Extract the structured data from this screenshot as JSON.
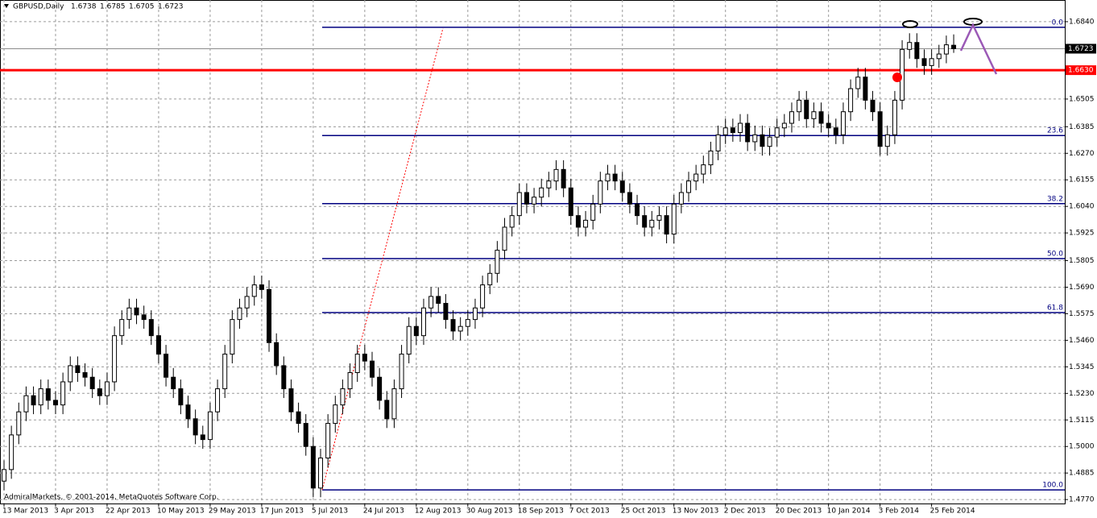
{
  "chart_data": {
    "type": "candlestick",
    "title": "GBPUSD,Daily",
    "footer": "AdmiralMarkets, © 2001-2014, MetaQuotes Software Corp.",
    "x": [
      "13 Mar 2013",
      null,
      null,
      null,
      null,
      null,
      null,
      "3 Apr 2013",
      null,
      null,
      null,
      null,
      null,
      null,
      "22 Apr 2013",
      null,
      null,
      null,
      null,
      null,
      null,
      "10 May 2013",
      null,
      null,
      null,
      null,
      null,
      null,
      "29 May 2013",
      null,
      null,
      null,
      null,
      null,
      null,
      "17 Jun 2013",
      null,
      null,
      null,
      null,
      null,
      null,
      "5 Jul 2013",
      null,
      null,
      null,
      null,
      null,
      null,
      "24 Jul 2013",
      null,
      null,
      null,
      null,
      null,
      null,
      "12 Aug 2013",
      null,
      null,
      null,
      null,
      null,
      null,
      "30 Aug 2013",
      null,
      null,
      null,
      null,
      null,
      null,
      "18 Sep 2013",
      null,
      null,
      null,
      null,
      null,
      null,
      "7 Oct 2013",
      null,
      null,
      null,
      null,
      null,
      null,
      "25 Oct 2013",
      null,
      null,
      null,
      null,
      null,
      null,
      "13 Nov 2013",
      null,
      null,
      null,
      null,
      null,
      null,
      "2 Dec 2013",
      null,
      null,
      null,
      null,
      null,
      null,
      "20 Dec 2013",
      null,
      null,
      null,
      null,
      null,
      null,
      "10 Jan 2014",
      null,
      null,
      null,
      null,
      null,
      null,
      "3 Feb 2014",
      null,
      null,
      null,
      null,
      null,
      null,
      "25 Feb 2014",
      null,
      null,
      null
    ],
    "ohlc": [
      [
        1.485,
        1.494,
        1.481,
        1.49
      ],
      [
        1.49,
        1.509,
        1.486,
        1.505
      ],
      [
        1.505,
        1.519,
        1.501,
        1.515
      ],
      [
        1.515,
        1.526,
        1.511,
        1.522
      ],
      [
        1.522,
        1.526,
        1.514,
        1.518
      ],
      [
        1.518,
        1.529,
        1.514,
        1.525
      ],
      [
        1.525,
        1.529,
        1.516,
        1.52
      ],
      [
        1.52,
        1.524,
        1.514,
        1.518
      ],
      [
        1.518,
        1.532,
        1.514,
        1.528
      ],
      [
        1.528,
        1.539,
        1.524,
        1.535
      ],
      [
        1.535,
        1.539,
        1.528,
        1.532
      ],
      [
        1.532,
        1.536,
        1.526,
        1.53
      ],
      [
        1.53,
        1.534,
        1.521,
        1.525
      ],
      [
        1.525,
        1.529,
        1.518,
        1.522
      ],
      [
        1.522,
        1.532,
        1.518,
        1.528
      ],
      [
        1.528,
        1.552,
        1.524,
        1.548
      ],
      [
        1.548,
        1.559,
        1.544,
        1.555
      ],
      [
        1.555,
        1.564,
        1.551,
        1.56
      ],
      [
        1.56,
        1.564,
        1.553,
        1.557
      ],
      [
        1.557,
        1.561,
        1.551,
        1.555
      ],
      [
        1.555,
        1.559,
        1.544,
        1.548
      ],
      [
        1.548,
        1.552,
        1.536,
        1.54
      ],
      [
        1.54,
        1.544,
        1.526,
        1.53
      ],
      [
        1.53,
        1.534,
        1.521,
        1.525
      ],
      [
        1.525,
        1.529,
        1.514,
        1.518
      ],
      [
        1.518,
        1.522,
        1.508,
        1.512
      ],
      [
        1.512,
        1.516,
        1.501,
        1.505
      ],
      [
        1.505,
        1.509,
        1.499,
        1.503
      ],
      [
        1.503,
        1.519,
        1.499,
        1.515
      ],
      [
        1.515,
        1.529,
        1.511,
        1.525
      ],
      [
        1.525,
        1.544,
        1.521,
        1.54
      ],
      [
        1.54,
        1.559,
        1.536,
        1.555
      ],
      [
        1.555,
        1.564,
        1.551,
        1.56
      ],
      [
        1.56,
        1.569,
        1.556,
        1.565
      ],
      [
        1.565,
        1.574,
        1.561,
        1.57
      ],
      [
        1.57,
        1.574,
        1.564,
        1.568
      ],
      [
        1.568,
        1.572,
        1.541,
        1.545
      ],
      [
        1.545,
        1.549,
        1.531,
        1.535
      ],
      [
        1.535,
        1.539,
        1.521,
        1.525
      ],
      [
        1.525,
        1.529,
        1.511,
        1.515
      ],
      [
        1.515,
        1.519,
        1.506,
        1.51
      ],
      [
        1.51,
        1.514,
        1.496,
        1.5
      ],
      [
        1.5,
        1.504,
        1.478,
        1.482
      ],
      [
        1.482,
        1.499,
        1.478,
        1.495
      ],
      [
        1.495,
        1.514,
        1.491,
        1.51
      ],
      [
        1.51,
        1.522,
        1.506,
        1.518
      ],
      [
        1.518,
        1.529,
        1.514,
        1.525
      ],
      [
        1.525,
        1.536,
        1.521,
        1.532
      ],
      [
        1.532,
        1.544,
        1.528,
        1.54
      ],
      [
        1.54,
        1.544,
        1.533,
        1.537
      ],
      [
        1.537,
        1.541,
        1.526,
        1.53
      ],
      [
        1.53,
        1.534,
        1.516,
        1.52
      ],
      [
        1.52,
        1.524,
        1.508,
        1.512
      ],
      [
        1.512,
        1.529,
        1.508,
        1.525
      ],
      [
        1.525,
        1.544,
        1.521,
        1.54
      ],
      [
        1.54,
        1.556,
        1.536,
        1.552
      ],
      [
        1.552,
        1.556,
        1.544,
        1.548
      ],
      [
        1.548,
        1.564,
        1.544,
        1.56
      ],
      [
        1.56,
        1.569,
        1.556,
        1.565
      ],
      [
        1.565,
        1.569,
        1.558,
        1.562
      ],
      [
        1.562,
        1.566,
        1.551,
        1.555
      ],
      [
        1.555,
        1.559,
        1.546,
        1.55
      ],
      [
        1.55,
        1.556,
        1.546,
        1.552
      ],
      [
        1.552,
        1.559,
        1.548,
        1.555
      ],
      [
        1.555,
        1.564,
        1.551,
        1.56
      ],
      [
        1.56,
        1.574,
        1.556,
        1.57
      ],
      [
        1.57,
        1.579,
        1.566,
        1.575
      ],
      [
        1.575,
        1.589,
        1.571,
        1.585
      ],
      [
        1.585,
        1.599,
        1.581,
        1.595
      ],
      [
        1.595,
        1.604,
        1.591,
        1.6
      ],
      [
        1.6,
        1.614,
        1.596,
        1.61
      ],
      [
        1.61,
        1.614,
        1.601,
        1.605
      ],
      [
        1.605,
        1.612,
        1.601,
        1.608
      ],
      [
        1.608,
        1.616,
        1.604,
        1.612
      ],
      [
        1.612,
        1.619,
        1.608,
        1.615
      ],
      [
        1.615,
        1.624,
        1.611,
        1.62
      ],
      [
        1.62,
        1.624,
        1.608,
        1.612
      ],
      [
        1.612,
        1.616,
        1.596,
        1.6
      ],
      [
        1.6,
        1.604,
        1.591,
        1.595
      ],
      [
        1.595,
        1.602,
        1.591,
        1.598
      ],
      [
        1.598,
        1.609,
        1.594,
        1.605
      ],
      [
        1.605,
        1.619,
        1.601,
        1.615
      ],
      [
        1.615,
        1.622,
        1.611,
        1.618
      ],
      [
        1.618,
        1.622,
        1.611,
        1.615
      ],
      [
        1.615,
        1.619,
        1.606,
        1.61
      ],
      [
        1.61,
        1.614,
        1.601,
        1.605
      ],
      [
        1.605,
        1.609,
        1.596,
        1.6
      ],
      [
        1.6,
        1.604,
        1.591,
        1.595
      ],
      [
        1.595,
        1.602,
        1.591,
        1.598
      ],
      [
        1.598,
        1.604,
        1.594,
        1.6
      ],
      [
        1.6,
        1.604,
        1.588,
        1.592
      ],
      [
        1.592,
        1.609,
        1.588,
        1.605
      ],
      [
        1.605,
        1.614,
        1.601,
        1.61
      ],
      [
        1.61,
        1.619,
        1.606,
        1.615
      ],
      [
        1.615,
        1.622,
        1.611,
        1.618
      ],
      [
        1.618,
        1.626,
        1.614,
        1.622
      ],
      [
        1.622,
        1.632,
        1.618,
        1.628
      ],
      [
        1.628,
        1.639,
        1.624,
        1.635
      ],
      [
        1.635,
        1.642,
        1.631,
        1.638
      ],
      [
        1.638,
        1.642,
        1.632,
        1.636
      ],
      [
        1.636,
        1.644,
        1.632,
        1.64
      ],
      [
        1.64,
        1.644,
        1.628,
        1.632
      ],
      [
        1.632,
        1.639,
        1.628,
        1.635
      ],
      [
        1.635,
        1.639,
        1.626,
        1.63
      ],
      [
        1.63,
        1.638,
        1.626,
        1.634
      ],
      [
        1.634,
        1.642,
        1.63,
        1.638
      ],
      [
        1.638,
        1.644,
        1.634,
        1.64
      ],
      [
        1.64,
        1.649,
        1.636,
        1.645
      ],
      [
        1.645,
        1.654,
        1.641,
        1.65
      ],
      [
        1.65,
        1.654,
        1.638,
        1.642
      ],
      [
        1.642,
        1.649,
        1.638,
        1.645
      ],
      [
        1.645,
        1.649,
        1.636,
        1.64
      ],
      [
        1.64,
        1.644,
        1.634,
        1.638
      ],
      [
        1.638,
        1.642,
        1.631,
        1.635
      ],
      [
        1.635,
        1.649,
        1.631,
        1.645
      ],
      [
        1.645,
        1.659,
        1.641,
        1.655
      ],
      [
        1.655,
        1.664,
        1.651,
        1.66
      ],
      [
        1.66,
        1.664,
        1.646,
        1.65
      ],
      [
        1.65,
        1.654,
        1.641,
        1.645
      ],
      [
        1.645,
        1.649,
        1.626,
        1.63
      ],
      [
        1.63,
        1.639,
        1.626,
        1.635
      ],
      [
        1.635,
        1.654,
        1.631,
        1.65
      ],
      [
        1.65,
        1.676,
        1.646,
        1.672
      ],
      [
        1.672,
        1.679,
        1.668,
        1.675
      ],
      [
        1.675,
        1.679,
        1.664,
        1.668
      ],
      [
        1.668,
        1.672,
        1.661,
        1.665
      ],
      [
        1.665,
        1.672,
        1.661,
        1.668
      ],
      [
        1.668,
        1.674,
        1.664,
        1.67
      ],
      [
        1.67,
        1.678,
        1.666,
        1.674
      ],
      [
        1.6738,
        1.6785,
        1.6705,
        1.6723
      ]
    ],
    "ylim": [
      1.4753,
      1.6934
    ],
    "yticks": [
      {
        "value": 1.684,
        "label": "1.6840"
      },
      1.6505,
      1.6385,
      {
        "value": 1.627,
        "label": "1.6270"
      },
      1.6155,
      {
        "value": 1.604,
        "label": "1.6040"
      },
      1.5925,
      1.5805,
      {
        "value": 1.569,
        "label": "1.5690"
      },
      1.5575,
      {
        "value": 1.546,
        "label": "1.5460"
      },
      1.5345,
      {
        "value": 1.523,
        "label": "1.5230"
      },
      1.5115,
      {
        "value": 1.5,
        "label": "1.5000"
      },
      1.4885,
      {
        "value": 1.477,
        "label": "1.4770"
      }
    ],
    "grid": true,
    "support_level": {
      "value": 1.663,
      "label": "1.6630",
      "color": "#ff0000"
    },
    "fib_levels": [
      {
        "value": 1.6816,
        "label": "0.0"
      },
      {
        "value": 1.6347,
        "label": "23.6"
      },
      {
        "value": 1.6052,
        "label": "38.2"
      },
      {
        "value": 1.5814,
        "label": "50.0"
      },
      {
        "value": 1.558,
        "label": "61.8"
      },
      {
        "value": 1.4812,
        "label": "100.0"
      }
    ],
    "fib_color": "#000080",
    "up_color": "#ffffff",
    "down_color": "#000000"
  }
}
